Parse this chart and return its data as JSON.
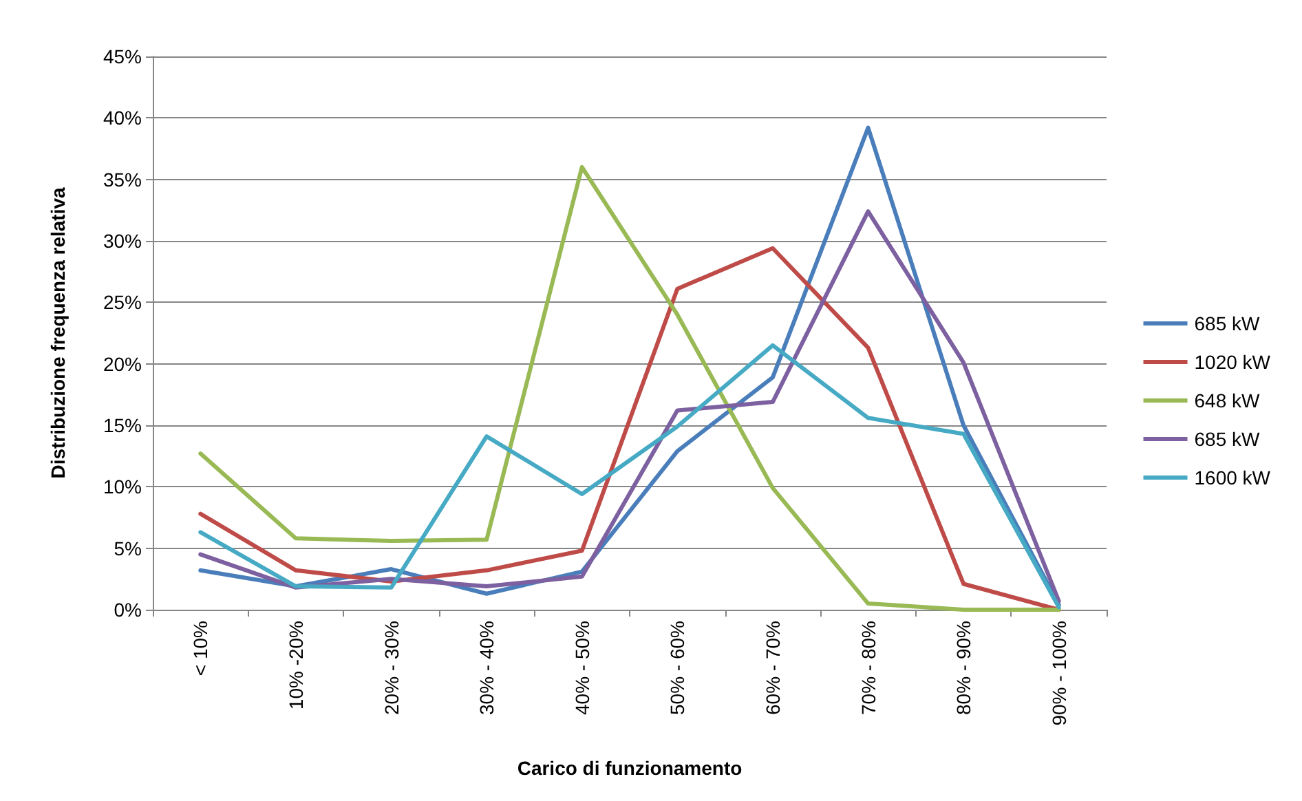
{
  "chart_data": {
    "type": "line",
    "xlabel": "Carico di funzionamento",
    "ylabel": "Distribuzione frequenza relativa",
    "categories": [
      "< 10%",
      "10% -20%",
      "20% - 30%",
      "30% - 40%",
      "40% - 50%",
      "50% - 60%",
      "60% - 70%",
      "70% - 80%",
      "80% - 90%",
      "90% - 100%"
    ],
    "series": [
      {
        "name": "685 kW",
        "color": "#4a7ebb",
        "values": [
          3.2,
          1.9,
          3.3,
          1.3,
          3.1,
          12.9,
          18.9,
          39.2,
          15.0,
          0.4
        ]
      },
      {
        "name": "1020 kW",
        "color": "#be4b48",
        "values": [
          7.8,
          3.2,
          2.3,
          3.2,
          4.8,
          26.1,
          29.4,
          21.3,
          2.1,
          0
        ]
      },
      {
        "name": "648 kW",
        "color": "#98b954",
        "values": [
          12.7,
          5.8,
          5.6,
          5.7,
          36.0,
          24.0,
          9.9,
          0.5,
          0,
          0
        ]
      },
      {
        "name": "685 kW",
        "color": "#7d60a0",
        "values": [
          4.5,
          1.8,
          2.5,
          1.9,
          2.7,
          16.2,
          16.9,
          32.4,
          20.1,
          0.7
        ]
      },
      {
        "name": "1600 kW",
        "color": "#46aac5",
        "values": [
          6.3,
          1.9,
          1.8,
          14.1,
          9.4,
          14.9,
          21.5,
          15.6,
          14.3,
          0.2
        ]
      }
    ],
    "ylim": [
      0,
      45
    ],
    "yticks": [
      {
        "value": 0,
        "label": "0%"
      },
      {
        "value": 5,
        "label": "5%"
      },
      {
        "value": 10,
        "label": "10%"
      },
      {
        "value": 15,
        "label": "15%"
      },
      {
        "value": 20,
        "label": "20%"
      },
      {
        "value": 25,
        "label": "25%"
      },
      {
        "value": 30,
        "label": "30%"
      },
      {
        "value": 35,
        "label": "35%"
      },
      {
        "value": 40,
        "label": "40%"
      },
      {
        "value": 45,
        "label": "45%"
      }
    ],
    "grid": "y",
    "legend": "right",
    "marker": "none",
    "line_style": "solid"
  }
}
